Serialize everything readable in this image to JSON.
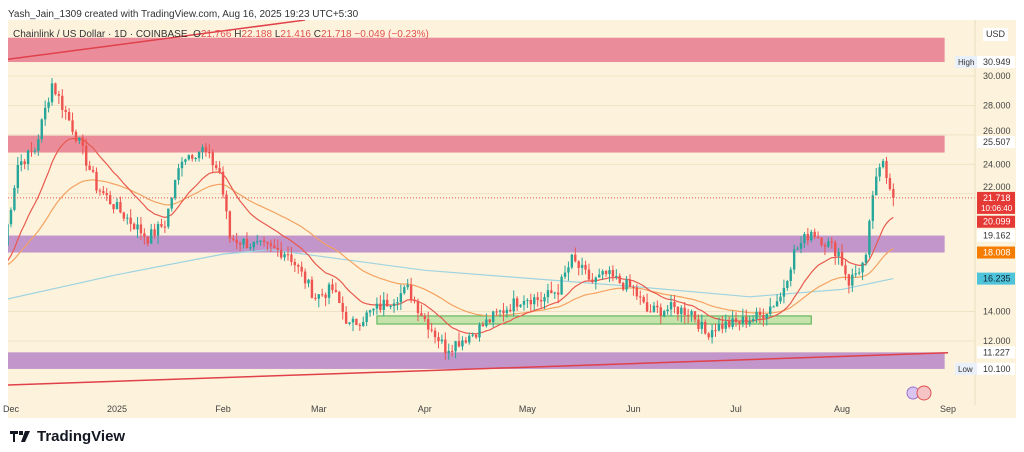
{
  "credit": "Yash_Jain_1309 created with TradingView.com, Aug 16, 2025 19:23 UTC+5:30",
  "legend": {
    "symbol": "Chainlink / US Dollar · 1D · COINBASE",
    "o_label": "O",
    "o": "21.766",
    "h_label": "H",
    "h": "22.188",
    "l_label": "L",
    "l": "21.416",
    "c_label": "C",
    "c": "21.718",
    "change": "−0.049 (−0.23%)"
  },
  "brand": "TradingView",
  "currency": "USD",
  "colors": {
    "bg": "#fdf3dc",
    "up": "#26a69a",
    "down": "#ef5350",
    "red_zone": "#e8798f",
    "purple_zone": "#b784c8",
    "green_zone": "#b9dfa0",
    "ma_fast": "#e85a4f",
    "ma_mid": "#f4a261",
    "ma_slow": "#9fd3e0"
  },
  "chart_data": {
    "type": "candlestick",
    "title": "Chainlink / US Dollar · 1D · COINBASE",
    "ylim": [
      9.2,
      32.6
    ],
    "y_ticks": [
      "30.000",
      "28.000",
      "26.000",
      "24.000",
      "22.000",
      "14.000",
      "12.000"
    ],
    "y_tick_values": [
      30,
      28,
      26,
      24,
      22,
      14,
      12
    ],
    "x_ticks": [
      "Dec",
      "2025",
      "Feb",
      "Mar",
      "Apr",
      "May",
      "Jun",
      "Jul",
      "Aug",
      "Sep"
    ],
    "x_tick_dates": [
      "2024-12-01",
      "2025-01-01",
      "2025-02-01",
      "2025-03-01",
      "2025-04-01",
      "2025-05-01",
      "2025-06-01",
      "2025-07-01",
      "2025-08-01",
      "2025-09-01"
    ],
    "close_anchors": [
      [
        "2024-11-29",
        18.5
      ],
      [
        "2024-12-03",
        24
      ],
      [
        "2024-12-08",
        25
      ],
      [
        "2024-12-13",
        29.5
      ],
      [
        "2024-12-20",
        26
      ],
      [
        "2024-12-26",
        22.5
      ],
      [
        "2025-01-01",
        21
      ],
      [
        "2025-01-10",
        19
      ],
      [
        "2025-01-15",
        20
      ],
      [
        "2025-01-20",
        24.5
      ],
      [
        "2025-01-26",
        25
      ],
      [
        "2025-01-31",
        23.5
      ],
      [
        "2025-02-03",
        19
      ],
      [
        "2025-02-10",
        18.5
      ],
      [
        "2025-02-20",
        18
      ],
      [
        "2025-02-28",
        15
      ],
      [
        "2025-03-05",
        15.5
      ],
      [
        "2025-03-10",
        13
      ],
      [
        "2025-03-20",
        14.5
      ],
      [
        "2025-03-27",
        15.5
      ],
      [
        "2025-04-01",
        13.5
      ],
      [
        "2025-04-07",
        11.5
      ],
      [
        "2025-04-15",
        12.5
      ],
      [
        "2025-04-22",
        13.8
      ],
      [
        "2025-04-30",
        15
      ],
      [
        "2025-05-05",
        14.8
      ],
      [
        "2025-05-10",
        15.5
      ],
      [
        "2025-05-14",
        17.5
      ],
      [
        "2025-05-20",
        16
      ],
      [
        "2025-05-24",
        16.5
      ],
      [
        "2025-06-01",
        15.5
      ],
      [
        "2025-06-05",
        14
      ],
      [
        "2025-06-12",
        14.2
      ],
      [
        "2025-06-18",
        14
      ],
      [
        "2025-06-22",
        12.5
      ],
      [
        "2025-06-25",
        13
      ],
      [
        "2025-07-01",
        13.2
      ],
      [
        "2025-07-08",
        13.7
      ],
      [
        "2025-07-14",
        15
      ],
      [
        "2025-07-18",
        18
      ],
      [
        "2025-07-23",
        19.5
      ],
      [
        "2025-07-31",
        18
      ],
      [
        "2025-08-03",
        16
      ],
      [
        "2025-08-08",
        17.5
      ],
      [
        "2025-08-10",
        22
      ],
      [
        "2025-08-13",
        24.3
      ],
      [
        "2025-08-16",
        21.718
      ]
    ],
    "ma_slow_anchors": [
      [
        "2024-11-29",
        14.8
      ],
      [
        "2025-01-01",
        16.5
      ],
      [
        "2025-02-01",
        17.9
      ],
      [
        "2025-02-15",
        18.2
      ],
      [
        "2025-04-01",
        16.8
      ],
      [
        "2025-06-01",
        15.7
      ],
      [
        "2025-07-05",
        15.0
      ],
      [
        "2025-08-01",
        15.5
      ],
      [
        "2025-08-16",
        16.235
      ]
    ],
    "zones": [
      {
        "type": "resistance",
        "color": "red",
        "low": 30.949,
        "high": 32.6,
        "end": "2025-08-31"
      },
      {
        "type": "resistance",
        "color": "red",
        "low": 24.8,
        "high": 25.95,
        "end": "2025-08-31"
      },
      {
        "type": "support",
        "color": "purple",
        "low": 18.008,
        "high": 19.162,
        "end": "2025-08-31"
      },
      {
        "type": "support",
        "color": "purple",
        "low": 10.1,
        "high": 11.227,
        "end": "2025-08-31"
      },
      {
        "type": "range",
        "color": "green",
        "low": 13.15,
        "high": 13.7,
        "start": "2025-03-18",
        "end": "2025-07-23"
      }
    ],
    "trendlines": [
      {
        "from": [
          "2024-11-29",
          31.1
        ],
        "to": [
          "2025-02-25",
          33.8
        ]
      },
      {
        "from": [
          "2024-11-29",
          9.0
        ],
        "to": [
          "2025-09-01",
          11.2
        ]
      }
    ],
    "price_labels": [
      {
        "text": "30.949",
        "prefix": "High",
        "value": 30.949,
        "style": "plain"
      },
      {
        "text": "25.507",
        "value": 25.507,
        "style": "plain"
      },
      {
        "text": "21.718",
        "sub": "10:06:40",
        "value": 21.718,
        "style": "red"
      },
      {
        "text": "20.099",
        "value": 20.099,
        "style": "red"
      },
      {
        "text": "19.162",
        "value": 19.162,
        "style": "plain"
      },
      {
        "text": "18.008",
        "value": 18.008,
        "style": "orange"
      },
      {
        "text": "16.235",
        "value": 16.235,
        "style": "cyan"
      },
      {
        "text": "11.227",
        "value": 11.227,
        "style": "plain"
      },
      {
        "text": "10.100",
        "prefix": "Low",
        "value": 10.1,
        "style": "plain"
      }
    ]
  }
}
